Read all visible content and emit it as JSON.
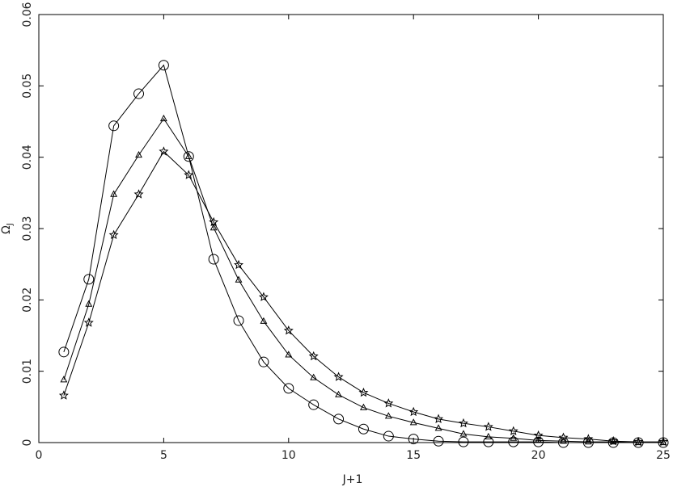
{
  "chart_data": {
    "type": "line",
    "xlabel": "J+1",
    "ylabel": {
      "symbol": "Ω",
      "subscript": "J"
    },
    "x": [
      1,
      2,
      3,
      4,
      5,
      6,
      7,
      8,
      9,
      10,
      11,
      12,
      13,
      14,
      15,
      16,
      17,
      18,
      19,
      20,
      21,
      22,
      23,
      24,
      25
    ],
    "series": [
      {
        "marker": "circle",
        "color": "#000000",
        "values": [
          0.0127,
          0.0229,
          0.0444,
          0.0489,
          0.0529,
          0.0401,
          0.0257,
          0.0171,
          0.0113,
          0.0076,
          0.0053,
          0.0033,
          0.0019,
          0.0009,
          0.0005,
          0.0002,
          0.0001,
          0.0001,
          0.0001,
          0.0001,
          0,
          0,
          0,
          0,
          0
        ]
      },
      {
        "marker": "triangle",
        "color": "#000000",
        "values": [
          0.0088,
          0.0194,
          0.0348,
          0.0403,
          0.0454,
          0.0401,
          0.0301,
          0.0228,
          0.017,
          0.0123,
          0.0091,
          0.0067,
          0.0049,
          0.0037,
          0.0028,
          0.002,
          0.0012,
          0.0008,
          0.0006,
          0.0003,
          0.0002,
          0.0001,
          0.0001,
          0,
          0
        ]
      },
      {
        "marker": "star",
        "color": "#000000",
        "values": [
          0.0066,
          0.0168,
          0.0291,
          0.0348,
          0.0408,
          0.0375,
          0.0309,
          0.0249,
          0.0204,
          0.0157,
          0.0121,
          0.0092,
          0.007,
          0.0055,
          0.0043,
          0.0033,
          0.0027,
          0.0022,
          0.0016,
          0.001,
          0.0007,
          0.0005,
          0.0002,
          0.0001,
          0.0001
        ]
      }
    ],
    "xlim": [
      0,
      25
    ],
    "xticks": [
      0,
      5,
      10,
      15,
      20,
      25
    ],
    "ylim": [
      0,
      0.06
    ],
    "yticks": [
      0,
      0.01,
      0.02,
      0.03,
      0.04,
      0.05,
      0.06
    ],
    "grid": false
  }
}
